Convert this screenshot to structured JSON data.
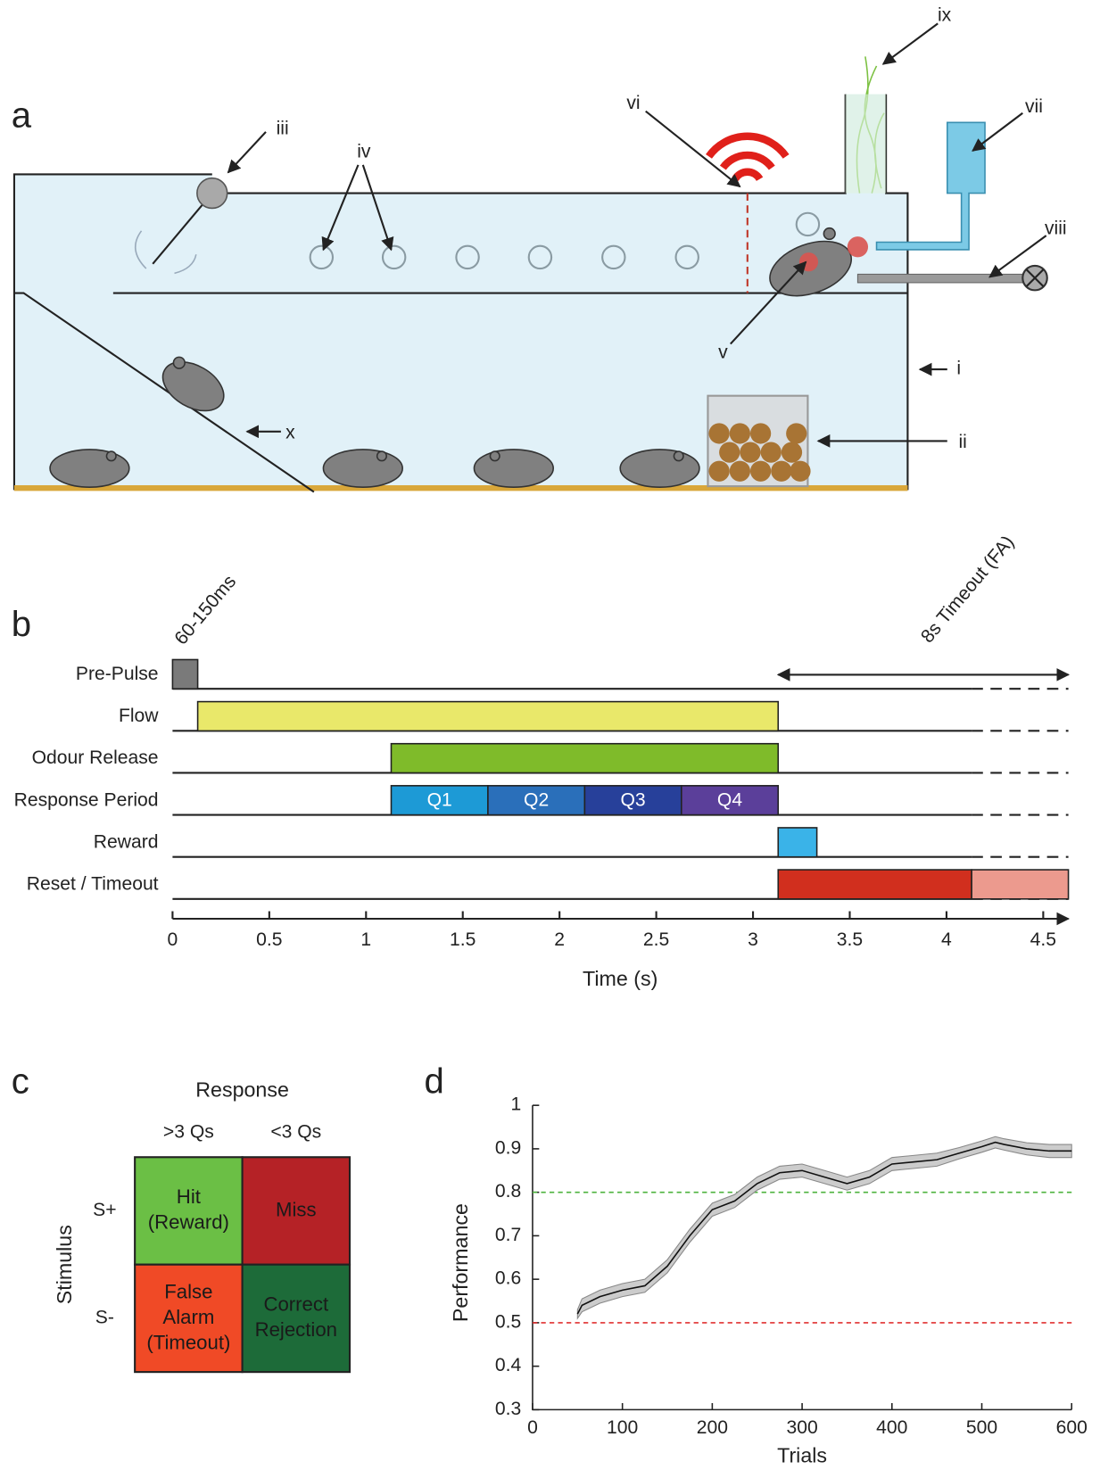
{
  "panel_a": {
    "label": "a",
    "annotations": [
      "i",
      "ii",
      "iii",
      "iv",
      "v",
      "vi",
      "vii",
      "viii",
      "ix",
      "x"
    ]
  },
  "panel_b": {
    "label": "b"
  },
  "panel_c": {
    "label": "c",
    "title": "Response",
    "columns": [
      ">3 Qs",
      "<3 Qs"
    ],
    "row_title": "Stimulus",
    "rows": [
      "S+",
      "S-"
    ],
    "cells": [
      [
        {
          "lines": [
            "Hit",
            "(Reward)"
          ],
          "color": "#6bbf45"
        },
        {
          "lines": [
            "Miss"
          ],
          "color": "#b52226"
        }
      ],
      [
        {
          "lines": [
            "False",
            "Alarm",
            "(Timeout)"
          ],
          "color": "#f04a26"
        },
        {
          "lines": [
            "Correct",
            "Rejection"
          ],
          "color": "#1d6b39"
        }
      ]
    ]
  },
  "panel_d": {
    "label": "d"
  },
  "chart_data": [
    {
      "type": "timeline",
      "xlabel": "Time (s)",
      "xlim": [
        0,
        4.63
      ],
      "xticks": [
        0,
        0.5,
        1,
        1.5,
        2,
        2.5,
        3,
        3.5,
        4,
        4.5
      ],
      "annotations": [
        "60-150ms",
        "8s Timeout (FA)"
      ],
      "rows": [
        {
          "name": "Pre-Pulse",
          "segments": [
            {
              "start": 0,
              "end": 0.13,
              "color": "#7a7a7a"
            }
          ]
        },
        {
          "name": "Flow",
          "segments": [
            {
              "start": 0.13,
              "end": 3.13,
              "color": "#e9e86a"
            }
          ]
        },
        {
          "name": "Odour Release",
          "segments": [
            {
              "start": 1.13,
              "end": 3.13,
              "color": "#7fbb2a"
            }
          ]
        },
        {
          "name": "Response Period",
          "segments": [
            {
              "start": 1.13,
              "end": 1.63,
              "color": "#1d9ad6",
              "label": "Q1"
            },
            {
              "start": 1.63,
              "end": 2.13,
              "color": "#2a6fba",
              "label": "Q2"
            },
            {
              "start": 2.13,
              "end": 2.63,
              "color": "#27409a",
              "label": "Q3"
            },
            {
              "start": 2.63,
              "end": 3.13,
              "color": "#5b3f9a",
              "label": "Q4"
            }
          ]
        },
        {
          "name": "Reward",
          "segments": [
            {
              "start": 3.13,
              "end": 3.33,
              "color": "#3ab3e8"
            }
          ]
        },
        {
          "name": "Reset / Timeout",
          "segments": [
            {
              "start": 3.13,
              "end": 4.13,
              "color": "#d12f1e"
            },
            {
              "start": 4.13,
              "end": 4.63,
              "color": "#ec9a8e"
            }
          ]
        }
      ]
    },
    {
      "type": "line",
      "xlabel": "Trials",
      "ylabel": "Performance",
      "xlim": [
        0,
        600
      ],
      "xticks": [
        0,
        100,
        200,
        300,
        400,
        500,
        600
      ],
      "ylim": [
        0.3,
        1
      ],
      "yticks": [
        0.3,
        0.4,
        0.5,
        0.6,
        0.7,
        0.8,
        0.9,
        1
      ],
      "hlines": [
        {
          "value": 0.8,
          "color": "#4db33d"
        },
        {
          "value": 0.5,
          "color": "#e03030"
        }
      ],
      "series": [
        {
          "color": "#111111",
          "band_color": "#cccccc",
          "x": [
            50,
            55,
            75,
            100,
            125,
            150,
            175,
            200,
            225,
            250,
            275,
            300,
            325,
            350,
            375,
            400,
            425,
            450,
            475,
            500,
            515,
            525,
            550,
            575,
            600
          ],
          "values": [
            0.52,
            0.54,
            0.56,
            0.575,
            0.585,
            0.63,
            0.7,
            0.76,
            0.78,
            0.82,
            0.845,
            0.85,
            0.835,
            0.82,
            0.835,
            0.865,
            0.87,
            0.875,
            0.89,
            0.905,
            0.915,
            0.91,
            0.9,
            0.895,
            0.895
          ],
          "lower": [
            0.51,
            0.525,
            0.545,
            0.56,
            0.57,
            0.615,
            0.685,
            0.745,
            0.765,
            0.805,
            0.83,
            0.835,
            0.82,
            0.805,
            0.82,
            0.85,
            0.855,
            0.86,
            0.877,
            0.892,
            0.902,
            0.897,
            0.886,
            0.88,
            0.88
          ],
          "upper": [
            0.53,
            0.555,
            0.575,
            0.59,
            0.6,
            0.645,
            0.715,
            0.775,
            0.795,
            0.835,
            0.86,
            0.865,
            0.85,
            0.835,
            0.85,
            0.88,
            0.885,
            0.89,
            0.903,
            0.918,
            0.928,
            0.923,
            0.914,
            0.91,
            0.91
          ]
        }
      ]
    }
  ]
}
